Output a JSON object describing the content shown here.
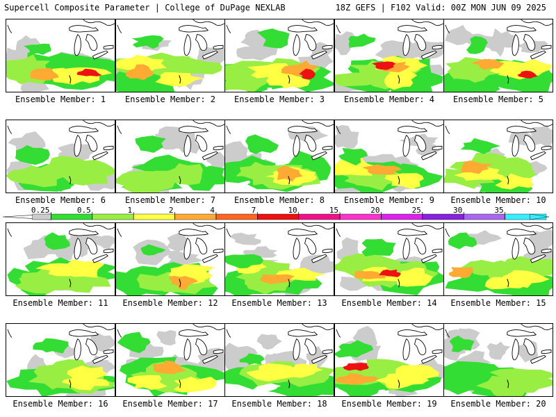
{
  "header": {
    "left": "Supercell Composite Parameter | College of DuPage NEXLAB",
    "right": "18Z GEFS | F102 Valid: 00Z MON JUN 09 2025"
  },
  "legend": {
    "ticks": [
      "0.25",
      "0.5",
      "1",
      "2",
      "4",
      "7",
      "10",
      "15",
      "20",
      "25",
      "30",
      "35"
    ],
    "colors": [
      "#cccccc",
      "#33dd33",
      "#99ee44",
      "#ffff44",
      "#ffaa33",
      "#ff6622",
      "#ee1111",
      "#ee1188",
      "#ff33cc",
      "#dd22ee",
      "#8822dd",
      "#aa66ee",
      "#33eeff"
    ]
  },
  "members": [
    {
      "label": "Ensemble Member: 1"
    },
    {
      "label": "Ensemble Member: 2"
    },
    {
      "label": "Ensemble Member: 3"
    },
    {
      "label": "Ensemble Member: 4"
    },
    {
      "label": "Ensemble Member: 5"
    },
    {
      "label": "Ensemble Member: 6"
    },
    {
      "label": "Ensemble Member: 7"
    },
    {
      "label": "Ensemble Member: 8"
    },
    {
      "label": "Ensemble Member: 9"
    },
    {
      "label": "Ensemble Member: 10"
    },
    {
      "label": "Ensemble Member: 11"
    },
    {
      "label": "Ensemble Member: 12"
    },
    {
      "label": "Ensemble Member: 13"
    },
    {
      "label": "Ensemble Member: 14"
    },
    {
      "label": "Ensemble Member: 15"
    },
    {
      "label": "Ensemble Member: 16"
    },
    {
      "label": "Ensemble Member: 17"
    },
    {
      "label": "Ensemble Member: 18"
    },
    {
      "label": "Ensemble Member: 19"
    },
    {
      "label": "Ensemble Member: 20"
    }
  ]
}
